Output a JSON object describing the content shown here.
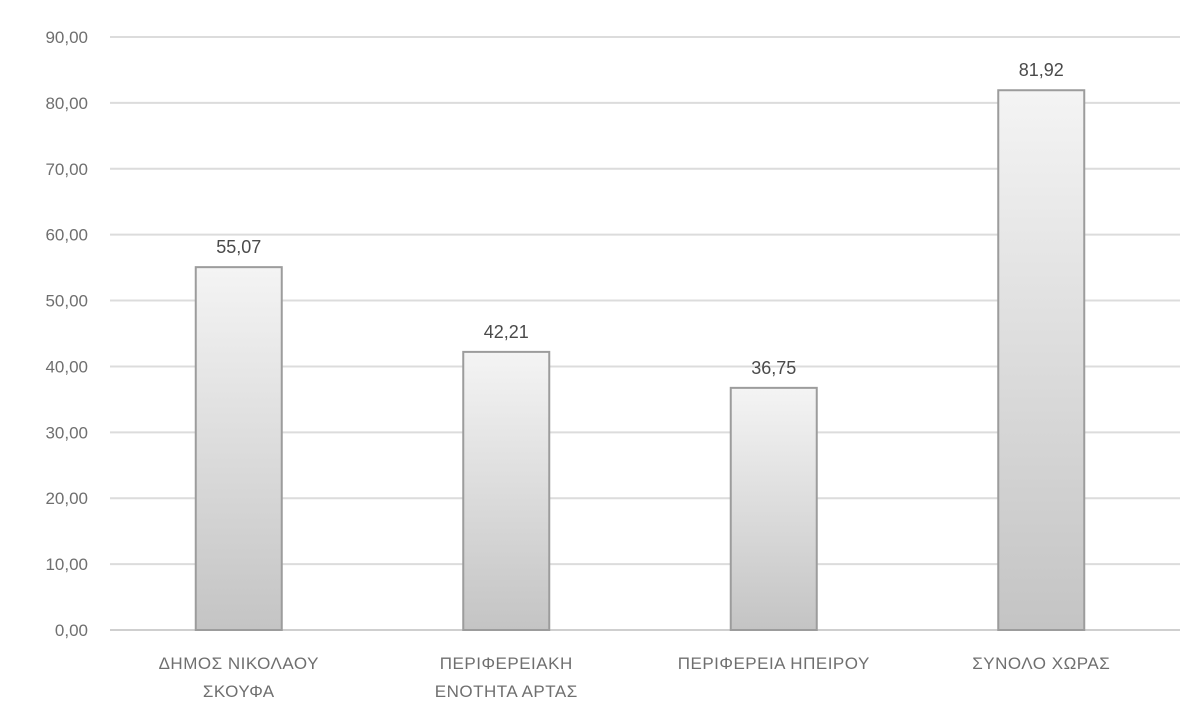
{
  "chart_data": {
    "type": "bar",
    "categories": [
      [
        "ΔΗΜΟΣ ΝΙΚΟΛΑΟΥ",
        "ΣΚΟΥΦΑ"
      ],
      [
        "ΠΕΡΙΦΕΡΕΙΑΚΗ",
        "ΕΝΟΤΗΤΑ ΑΡΤΑΣ"
      ],
      [
        "ΠΕΡΙΦΕΡΕΙΑ ΗΠΕΙΡΟΥ"
      ],
      [
        "ΣΥΝΟΛΟ ΧΩΡΑΣ"
      ]
    ],
    "values": [
      55.07,
      42.21,
      36.75,
      81.92
    ],
    "data_labels": [
      "55,07",
      "42,21",
      "36,75",
      "81,92"
    ],
    "yticks": [
      0,
      10,
      20,
      30,
      40,
      50,
      60,
      70,
      80,
      90
    ],
    "ytick_labels": [
      "0,00",
      "10,00",
      "20,00",
      "30,00",
      "40,00",
      "50,00",
      "60,00",
      "70,00",
      "80,00",
      "90,00"
    ],
    "ylim": [
      0,
      90
    ],
    "title": "",
    "xlabel": "",
    "ylabel": "",
    "grid": true,
    "legend": "none",
    "colors": {
      "bar_top": "#f4f4f4",
      "bar_bottom": "#c4c4c4",
      "bar_border": "#9c9c9c",
      "grid": "#dcdcdc",
      "text": "#6f6f6f"
    }
  }
}
